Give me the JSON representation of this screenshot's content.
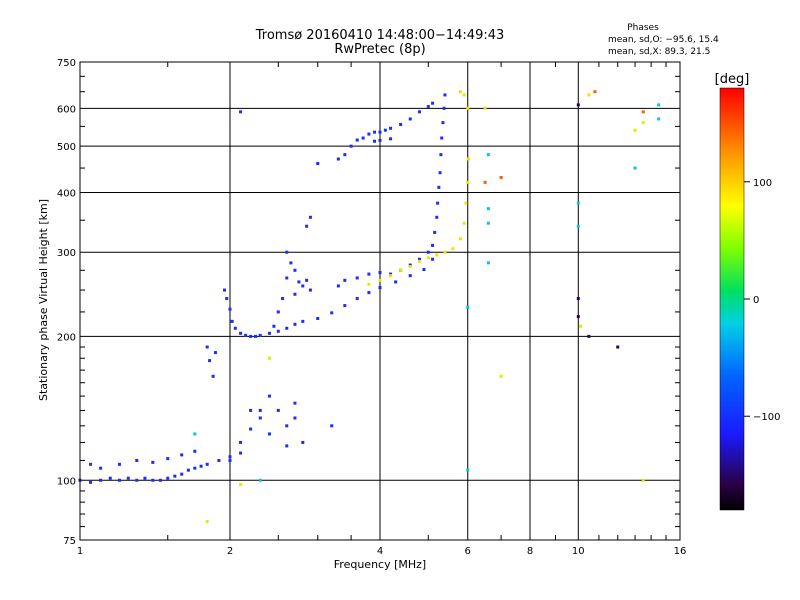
{
  "chart_data": {
    "type": "scatter",
    "title": "Tromsø 20160410 14:48:00−14:49:43",
    "subtitle": "RwPretec (8p)",
    "xlabel": "Frequency [MHz]",
    "ylabel": "Stationary phase Virtual Height [km]",
    "x_scale": "log",
    "y_scale": "log",
    "xlim": [
      1,
      16
    ],
    "ylim": [
      75,
      750
    ],
    "x_ticks": [
      1,
      2,
      4,
      6,
      8,
      10,
      16
    ],
    "y_ticks": [
      75,
      100,
      200,
      300,
      400,
      500,
      600,
      750
    ],
    "grid": true,
    "phases_box": {
      "heading": "Phases",
      "line_o": "mean, sd,O: −95.6, 15.4",
      "line_x": "mean, sd,X:  89.3, 21.5"
    },
    "colorbar": {
      "label": "[deg]",
      "range": [
        -180,
        180
      ],
      "ticks": [
        100,
        0,
        -100
      ],
      "tick_labels": [
        "100",
        "0",
        "−100"
      ],
      "colormap": "rainbow"
    },
    "series": [
      {
        "points": [
          [
            1.0,
            100
          ],
          [
            1.05,
            99
          ],
          [
            1.1,
            100
          ],
          [
            1.15,
            101
          ],
          [
            1.2,
            100
          ],
          [
            1.25,
            101
          ],
          [
            1.3,
            100
          ],
          [
            1.35,
            101
          ],
          [
            1.4,
            100
          ],
          [
            1.45,
            100
          ],
          [
            1.5,
            101
          ],
          [
            1.55,
            102
          ],
          [
            1.6,
            103
          ],
          [
            1.65,
            105
          ],
          [
            1.7,
            106
          ],
          [
            1.75,
            107
          ],
          [
            1.8,
            108
          ],
          [
            1.9,
            110
          ],
          [
            2.0,
            112
          ],
          [
            2.1,
            114
          ],
          [
            1.05,
            108
          ],
          [
            1.1,
            106
          ],
          [
            1.2,
            108
          ],
          [
            1.3,
            110
          ],
          [
            1.4,
            109
          ],
          [
            1.5,
            111
          ],
          [
            1.6,
            113
          ],
          [
            1.7,
            115
          ],
          [
            2.0,
            110
          ],
          [
            2.1,
            120
          ],
          [
            2.2,
            128
          ],
          [
            2.3,
            135
          ],
          [
            2.4,
            125
          ],
          [
            2.5,
            140
          ],
          [
            2.6,
            130
          ],
          [
            2.7,
            145
          ],
          [
            2.8,
            120
          ],
          [
            2.2,
            140
          ],
          [
            2.4,
            150
          ],
          [
            2.6,
            118
          ],
          [
            2.7,
            135
          ],
          [
            1.8,
            190
          ],
          [
            1.82,
            178
          ],
          [
            1.85,
            165
          ],
          [
            1.87,
            185
          ],
          [
            1.95,
            250
          ],
          [
            1.97,
            240
          ],
          [
            2.0,
            228
          ],
          [
            2.02,
            215
          ],
          [
            2.05,
            208
          ],
          [
            2.1,
            203
          ],
          [
            2.15,
            201
          ],
          [
            2.2,
            200
          ],
          [
            2.25,
            200
          ],
          [
            2.3,
            201
          ],
          [
            2.4,
            203
          ],
          [
            2.45,
            210
          ],
          [
            2.5,
            225
          ],
          [
            2.55,
            240
          ],
          [
            2.6,
            265
          ],
          [
            2.65,
            285
          ],
          [
            2.7,
            275
          ],
          [
            2.75,
            260
          ],
          [
            2.8,
            255
          ],
          [
            2.85,
            262
          ],
          [
            2.9,
            250
          ],
          [
            2.6,
            300
          ],
          [
            2.7,
            245
          ],
          [
            2.5,
            205
          ],
          [
            2.6,
            208
          ],
          [
            2.7,
            212
          ],
          [
            2.8,
            215
          ],
          [
            3.0,
            218
          ],
          [
            3.2,
            224
          ],
          [
            3.4,
            232
          ],
          [
            3.6,
            240
          ],
          [
            3.8,
            247
          ],
          [
            4.0,
            253
          ],
          [
            4.3,
            260
          ],
          [
            4.6,
            268
          ],
          [
            4.9,
            276
          ],
          [
            5.1,
            290
          ],
          [
            3.3,
            255
          ],
          [
            3.4,
            262
          ],
          [
            3.6,
            265
          ],
          [
            3.8,
            270
          ],
          [
            4.0,
            272
          ],
          [
            4.2,
            270
          ],
          [
            4.4,
            275
          ],
          [
            4.6,
            282
          ],
          [
            4.8,
            290
          ],
          [
            5.0,
            300
          ],
          [
            5.1,
            310
          ],
          [
            5.15,
            330
          ],
          [
            5.2,
            355
          ],
          [
            5.22,
            380
          ],
          [
            5.25,
            410
          ],
          [
            5.28,
            440
          ],
          [
            5.3,
            480
          ],
          [
            5.32,
            520
          ],
          [
            5.35,
            560
          ],
          [
            5.38,
            600
          ],
          [
            5.4,
            640
          ],
          [
            3.4,
            480
          ],
          [
            3.5,
            500
          ],
          [
            3.6,
            515
          ],
          [
            3.7,
            520
          ],
          [
            3.8,
            530
          ],
          [
            3.9,
            535
          ],
          [
            4.0,
            535
          ],
          [
            4.1,
            540
          ],
          [
            4.2,
            545
          ],
          [
            4.4,
            555
          ],
          [
            4.6,
            570
          ],
          [
            4.8,
            590
          ],
          [
            5.0,
            605
          ],
          [
            5.1,
            615
          ],
          [
            3.9,
            512
          ],
          [
            4.0,
            514
          ],
          [
            4.2,
            518
          ],
          [
            2.9,
            355
          ],
          [
            2.85,
            340
          ],
          [
            2.1,
            590
          ],
          [
            3.0,
            460
          ],
          [
            3.3,
            470
          ],
          [
            2.3,
            140
          ],
          [
            3.2,
            130
          ]
        ]
      },
      {
        "points": [
          [
            3.8,
            257
          ],
          [
            4.0,
            262
          ],
          [
            4.2,
            268
          ],
          [
            4.4,
            275
          ],
          [
            4.6,
            280
          ],
          [
            4.8,
            287
          ],
          [
            5.0,
            292
          ],
          [
            5.2,
            296
          ],
          [
            5.4,
            300
          ],
          [
            5.6,
            305
          ],
          [
            5.8,
            320
          ],
          [
            5.9,
            345
          ],
          [
            5.95,
            380
          ],
          [
            6.0,
            420
          ],
          [
            6.02,
            470
          ],
          [
            5.8,
            650
          ],
          [
            5.9,
            640
          ],
          [
            6.0,
            600
          ],
          [
            7.0,
            165
          ],
          [
            1.8,
            82
          ],
          [
            2.1,
            98
          ],
          [
            6.5,
            600
          ],
          [
            10.5,
            640
          ],
          [
            13.0,
            540
          ],
          [
            13.5,
            560
          ],
          [
            10.1,
            210
          ],
          [
            13.5,
            100
          ],
          [
            2.4,
            180
          ]
        ]
      },
      {
        "points": [
          [
            6.6,
            480
          ],
          [
            6.6,
            370
          ],
          [
            6.6,
            345
          ],
          [
            6.6,
            285
          ],
          [
            6.0,
            230
          ],
          [
            6.0,
            105
          ],
          [
            10.0,
            380
          ],
          [
            10.0,
            340
          ],
          [
            13.0,
            450
          ],
          [
            14.5,
            570
          ],
          [
            2.3,
            100
          ],
          [
            1.7,
            125
          ],
          [
            14.5,
            610
          ]
        ]
      },
      {
        "points": [
          [
            10.0,
            610
          ],
          [
            12.0,
            190
          ],
          [
            10.5,
            200
          ],
          [
            10.0,
            220
          ],
          [
            10.0,
            240
          ]
        ]
      },
      {
        "points": [
          [
            7.0,
            430
          ],
          [
            6.5,
            420
          ],
          [
            10.8,
            650
          ],
          [
            13.5,
            590
          ]
        ]
      }
    ]
  }
}
